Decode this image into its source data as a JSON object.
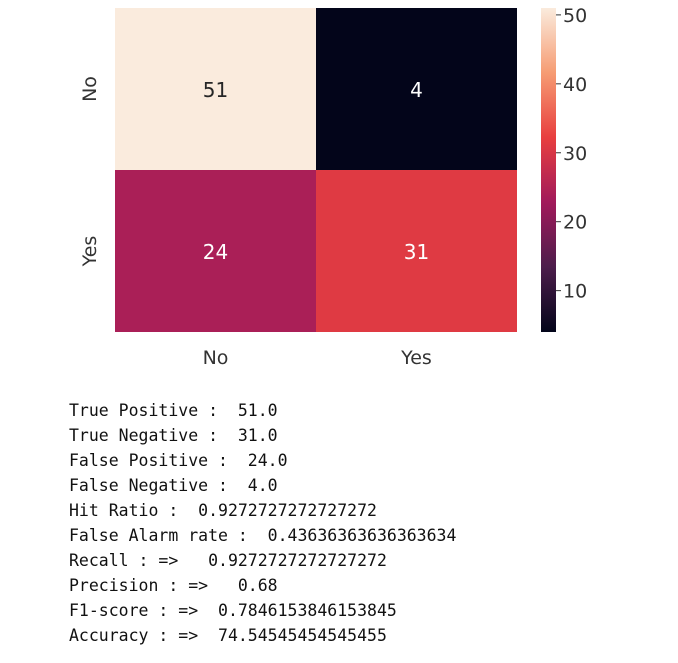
{
  "chart_data": {
    "type": "heatmap",
    "x_categories": [
      "No",
      "Yes"
    ],
    "y_categories": [
      "No",
      "Yes"
    ],
    "values": [
      [
        51,
        4
      ],
      [
        24,
        31
      ]
    ],
    "value_labels": [
      [
        "51",
        "4"
      ],
      [
        "24",
        "31"
      ]
    ],
    "colorbar": {
      "range": [
        4,
        51
      ],
      "ticks": [
        10,
        20,
        30,
        40,
        50
      ],
      "tick_labels": [
        "10",
        "20",
        "30",
        "40",
        "50"
      ],
      "colormap": "rocket",
      "colors": [
        "#03051a",
        "#4c1d4b",
        "#a11a5b",
        "#e83f3f",
        "#f69c73",
        "#faebdd"
      ]
    }
  },
  "metrics": [
    "True Positive :  51.0",
    "True Negative :  31.0",
    "False Positive :  24.0",
    "False Negative :  4.0",
    "Hit Ratio :  0.9272727272727272",
    "False Alarm rate :  0.43636363636363634",
    "Recall : =>   0.9272727272727272",
    "Precision : =>   0.68",
    "F1-score : =>  0.7846153846153845",
    "Accuracy : =>  74.54545454545455"
  ]
}
